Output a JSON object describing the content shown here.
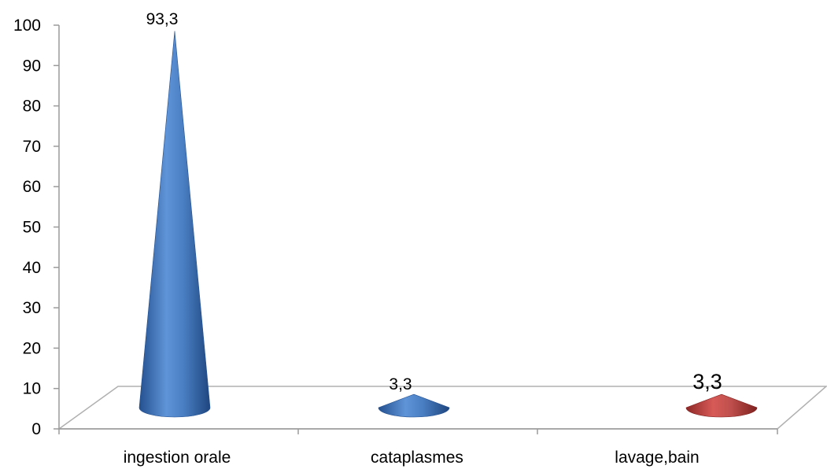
{
  "chart_data": {
    "type": "bar",
    "style": "3d-cone",
    "categories": [
      "ingestion orale",
      "cataplasmes",
      "lavage,bain"
    ],
    "values": [
      93.3,
      3.3,
      3.3
    ],
    "data_labels": [
      "93,3",
      "3,3",
      "3,3"
    ],
    "colors": [
      "#4f81bd",
      "#4f81bd",
      "#c0504d"
    ],
    "title": "",
    "xlabel": "",
    "ylabel": "",
    "ylim": [
      0,
      100
    ],
    "yticks": [
      0,
      10,
      20,
      30,
      40,
      50,
      60,
      70,
      80,
      90,
      100
    ],
    "grid": false,
    "legend": "none"
  }
}
